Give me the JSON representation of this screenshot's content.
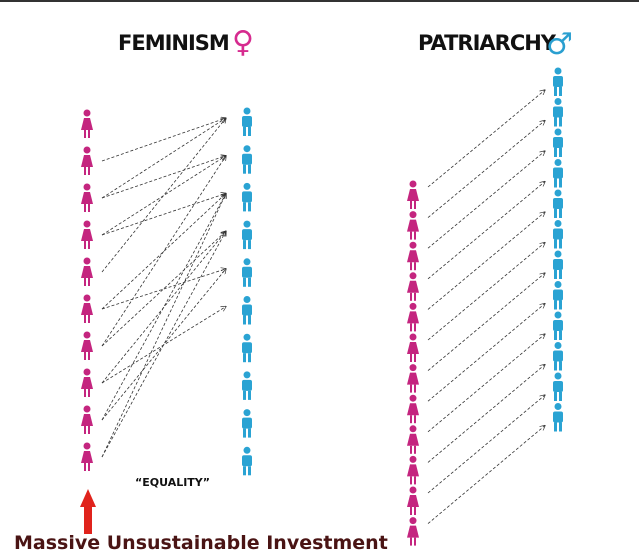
{
  "left": {
    "title": "FEMINISM",
    "symbol": "♀",
    "caption": "“EQUALITY”"
  },
  "right": {
    "title": "PATRIARCHY",
    "symbol": "♂"
  },
  "footer": "Massive Unsustainable Investment"
}
